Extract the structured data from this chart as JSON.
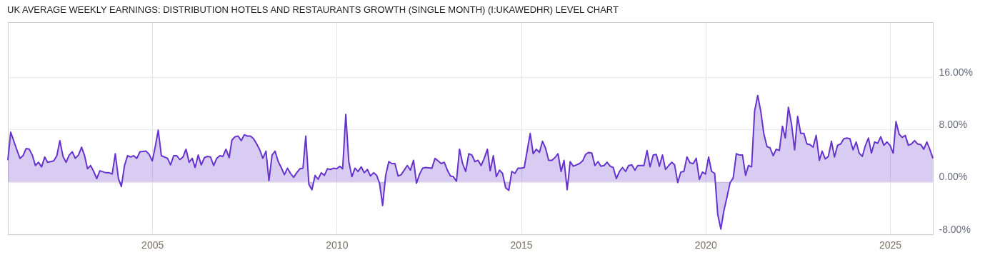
{
  "chart_data": {
    "type": "area",
    "title": "UK AVERAGE WEEKLY EARNINGS: DISTRIBUTION HOTELS AND RESTAURANTS GROWTH (SINGLE MONTH) (I:UKAWEDHR) LEVEL CHART",
    "x": [
      "2001-02",
      "2001-03",
      "2001-05",
      "2001-06",
      "2001-07",
      "2001-08",
      "2001-09",
      "2001-10",
      "2001-11",
      "2001-12",
      "2002-01",
      "2002-02",
      "2002-03",
      "2002-05",
      "2002-06",
      "2002-07",
      "2002-08",
      "2002-09",
      "2002-10",
      "2002-11",
      "2002-12",
      "2003-01",
      "2003-02",
      "2003-03",
      "2003-04",
      "2003-05",
      "2003-06",
      "2003-07",
      "2003-08",
      "2003-10",
      "2003-11",
      "2003-12",
      "2004-01",
      "2004-02",
      "2004-03",
      "2004-04",
      "2004-05",
      "2004-06",
      "2004-07",
      "2004-08",
      "2004-09",
      "2004-11",
      "2004-12",
      "2005-01",
      "2005-02",
      "2005-03",
      "2005-04",
      "2005-06",
      "2005-07",
      "2005-08",
      "2005-09",
      "2005-10",
      "2005-11",
      "2005-12",
      "2006-01",
      "2006-02",
      "2006-03",
      "2006-04",
      "2006-05",
      "2006-06",
      "2006-07",
      "2006-08",
      "2006-09",
      "2006-10",
      "2006-11",
      "2006-12",
      "2007-01",
      "2007-02",
      "2007-03",
      "2007-04",
      "2007-05",
      "2007-06",
      "2007-07",
      "2007-08",
      "2007-09",
      "2007-10",
      "2007-11",
      "2007-12",
      "2008-01",
      "2008-02",
      "2008-03",
      "2008-04",
      "2008-05",
      "2008-06",
      "2008-07",
      "2008-08",
      "2008-09",
      "2008-10",
      "2008-11",
      "2008-12",
      "2009-01",
      "2009-02",
      "2009-03",
      "2009-04",
      "2009-05",
      "2009-06",
      "2009-07",
      "2009-08",
      "2009-09",
      "2009-10",
      "2009-11",
      "2009-12",
      "2010-01",
      "2010-02",
      "2010-03",
      "2010-04",
      "2010-05",
      "2010-06",
      "2010-07",
      "2010-08",
      "2010-09",
      "2010-10",
      "2010-11",
      "2010-12",
      "2011-01",
      "2011-02",
      "2011-03",
      "2011-04",
      "2011-05",
      "2011-06",
      "2011-07",
      "2011-08",
      "2011-09",
      "2011-10",
      "2011-11",
      "2011-12",
      "2012-01",
      "2012-02",
      "2012-03",
      "2012-04",
      "2012-05",
      "2012-06",
      "2012-08",
      "2012-09",
      "2012-10",
      "2012-11",
      "2012-12",
      "2013-01",
      "2013-02",
      "2013-03",
      "2013-04",
      "2013-05",
      "2013-06",
      "2013-07",
      "2013-08",
      "2013-09",
      "2013-10",
      "2013-11",
      "2013-12",
      "2014-01",
      "2014-02",
      "2014-03",
      "2014-04",
      "2014-05",
      "2014-06",
      "2014-07",
      "2014-08",
      "2014-09",
      "2014-10",
      "2014-11",
      "2014-12",
      "2015-01",
      "2015-02",
      "2015-04",
      "2015-05",
      "2015-06",
      "2015-07",
      "2015-08",
      "2015-09",
      "2015-10",
      "2015-11",
      "2015-12",
      "2016-01",
      "2016-02",
      "2016-03",
      "2016-04",
      "2016-05",
      "2016-06",
      "2016-07",
      "2016-08",
      "2016-09",
      "2016-10",
      "2016-11",
      "2016-12",
      "2017-01",
      "2017-02",
      "2017-03",
      "2017-04",
      "2017-05",
      "2017-06",
      "2017-07",
      "2017-08",
      "2017-09",
      "2017-10",
      "2017-11",
      "2017-12",
      "2018-01",
      "2018-02",
      "2018-03",
      "2018-05",
      "2018-06",
      "2018-07",
      "2018-08",
      "2018-09",
      "2018-10",
      "2018-11",
      "2018-12",
      "2019-01",
      "2019-02",
      "2019-03",
      "2019-04",
      "2019-05",
      "2019-06",
      "2019-07",
      "2019-08",
      "2019-09",
      "2019-10",
      "2019-11",
      "2019-12",
      "2020-01",
      "2020-02",
      "2020-03",
      "2020-04",
      "2020-05",
      "2020-06",
      "2020-07",
      "2020-08",
      "2020-09",
      "2020-10",
      "2020-11",
      "2020-12",
      "2021-01",
      "2021-02",
      "2021-03",
      "2021-04",
      "2021-05",
      "2021-06",
      "2021-07",
      "2021-08",
      "2021-09",
      "2021-10",
      "2021-11",
      "2021-12",
      "2022-01",
      "2022-02",
      "2022-03",
      "2022-04",
      "2022-05",
      "2022-06",
      "2022-07",
      "2022-08",
      "2022-09",
      "2022-10",
      "2022-11",
      "2022-12",
      "2023-01",
      "2023-02",
      "2023-03",
      "2023-04",
      "2023-05",
      "2023-06",
      "2023-07",
      "2023-08",
      "2023-09",
      "2023-10",
      "2023-11",
      "2023-12",
      "2024-01",
      "2024-02",
      "2024-03",
      "2024-04",
      "2024-05",
      "2024-06",
      "2024-07",
      "2024-08",
      "2024-09",
      "2024-10",
      "2024-11",
      "2024-12",
      "2025-01",
      "2025-02",
      "2025-03",
      "2025-04",
      "2025-05",
      "2025-06",
      "2025-07",
      "2025-08",
      "2025-09",
      "2025-10",
      "2025-11",
      "2025-12",
      "2026-01",
      "2026-02",
      "2026-03"
    ],
    "series": [
      {
        "color": "#6633cc",
        "values": [
          3.3,
          7.6,
          4.9,
          3.6,
          4.0,
          5.1,
          5.0,
          4.1,
          2.5,
          3.0,
          2.3,
          3.8,
          3.0,
          3.2,
          4.0,
          6.3,
          3.9,
          3.0,
          4.1,
          4.6,
          3.6,
          4.1,
          5.3,
          4.1,
          2.0,
          2.5,
          1.6,
          0.5,
          1.7,
          1.4,
          1.4,
          1.2,
          4.3,
          0.5,
          -0.7,
          2.5,
          4.0,
          3.8,
          4.0,
          3.6,
          4.6,
          4.7,
          4.2,
          3.2,
          5.5,
          7.9,
          4.0,
          3.6,
          2.6,
          4.0,
          4.0,
          3.4,
          3.8,
          5.0,
          3.0,
          3.6,
          2.2,
          4.1,
          2.6,
          3.7,
          3.9,
          3.8,
          2.5,
          3.6,
          4.0,
          3.9,
          5.0,
          3.7,
          6.4,
          6.9,
          7.0,
          6.3,
          7.2,
          7.0,
          7.0,
          6.6,
          5.8,
          4.9,
          3.6,
          4.7,
          0.2,
          4.1,
          4.7,
          3.1,
          2.2,
          1.1,
          2.1,
          1.3,
          0.7,
          1.4,
          2.0,
          2.1,
          7.0,
          -0.4,
          -1.2,
          1.0,
          0.4,
          1.4,
          1.0,
          2.0,
          1.9,
          2.1,
          2.0,
          2.4,
          2.0,
          10.3,
          3.1,
          0.8,
          2.1,
          1.6,
          2.3,
          1.4,
          1.9,
          0.9,
          1.4,
          1.0,
          -0.2,
          -3.6,
          1.0,
          3.1,
          2.8,
          2.8,
          0.9,
          1.1,
          1.8,
          2.5,
          1.8,
          3.3,
          -0.2,
          1.2,
          2.1,
          2.2,
          2.1,
          3.6,
          3.2,
          2.8,
          3.0,
          1.8,
          0.9,
          0.8,
          0.1,
          5.0,
          2.8,
          1.6,
          4.3,
          4.1,
          3.1,
          3.3,
          2.5,
          3.6,
          5.0,
          1.7,
          4.0,
          0.8,
          1.8,
          1.3,
          -0.9,
          -1.3,
          1.6,
          1.3,
          2.1,
          2.1,
          2.2,
          7.4,
          4.3,
          5.0,
          4.5,
          6.2,
          5.1,
          3.3,
          3.3,
          3.7,
          4.3,
          1.6,
          3.3,
          -1.2,
          3.1,
          2.4,
          2.6,
          2.8,
          3.2,
          4.2,
          4.5,
          4.4,
          2.5,
          3.1,
          2.4,
          2.5,
          3.0,
          2.4,
          2.2,
          0.5,
          1.6,
          2.2,
          1.6,
          2.5,
          2.6,
          1.8,
          2.5,
          2.5,
          4.8,
          2.3,
          4.1,
          4.2,
          2.4,
          4.1,
          1.9,
          2.5,
          3.0,
          2.6,
          -0.1,
          1.5,
          1.6,
          3.8,
          2.9,
          2.8,
          3.6,
          0.4,
          1.5,
          1.2,
          3.8,
          1.6,
          1.3,
          -5.0,
          -7.2,
          -4.4,
          -2.3,
          -0.1,
          0.6,
          4.3,
          4.1,
          4.1,
          1.0,
          2.5,
          2.3,
          10.8,
          13.2,
          10.8,
          7.3,
          5.4,
          5.2,
          4.0,
          5.0,
          4.8,
          8.5,
          6.7,
          11.4,
          8.9,
          4.9,
          10.0,
          7.4,
          7.4,
          5.8,
          5.7,
          5.3,
          7.1,
          3.3,
          4.7,
          3.5,
          3.9,
          6.2,
          3.8,
          5.6,
          5.8,
          6.6,
          6.7,
          6.6,
          4.9,
          6.1,
          4.4,
          3.9,
          5.5,
          6.7,
          4.4,
          6.1,
          5.9,
          6.9,
          5.6,
          6.1,
          5.6,
          4.4,
          9.2,
          7.3,
          6.8,
          7.1,
          5.6,
          5.8,
          6.3,
          5.8,
          5.7,
          5.0,
          6.1,
          4.9,
          3.6
        ]
      }
    ],
    "xlim": [
      "2001-02",
      "2026-03"
    ],
    "xticks": [
      "2005",
      "2010",
      "2015",
      "2020",
      "2025"
    ],
    "ylim": [
      -8,
      24.4
    ],
    "yticks": [
      {
        "value": -8,
        "label": "-8.00%"
      },
      {
        "value": 0,
        "label": "0.00%"
      },
      {
        "value": 8,
        "label": "8.00%"
      },
      {
        "value": 16,
        "label": "16.00%"
      }
    ],
    "grid": true
  }
}
